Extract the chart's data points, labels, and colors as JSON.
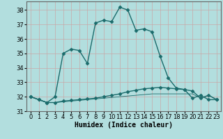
{
  "xlabel": "Humidex (Indice chaleur)",
  "background_color": "#b2dede",
  "grid_color": "#c8e8e8",
  "line_color": "#1a6b6b",
  "x_values": [
    0,
    1,
    2,
    3,
    4,
    5,
    6,
    7,
    8,
    9,
    10,
    11,
    12,
    13,
    14,
    15,
    16,
    17,
    18,
    19,
    20,
    21,
    22,
    23
  ],
  "series1": [
    32.0,
    31.8,
    31.6,
    32.0,
    35.0,
    35.3,
    35.2,
    34.3,
    37.1,
    37.3,
    37.2,
    38.2,
    38.0,
    36.6,
    36.7,
    36.5,
    34.8,
    33.3,
    32.6,
    32.5,
    31.9,
    32.1,
    31.8,
    31.8
  ],
  "series2": [
    32.0,
    31.8,
    31.6,
    31.6,
    31.7,
    31.75,
    31.8,
    31.85,
    31.9,
    32.0,
    32.1,
    32.2,
    32.35,
    32.45,
    32.55,
    32.6,
    32.65,
    32.6,
    32.55,
    32.5,
    32.4,
    31.9,
    32.1,
    31.8
  ],
  "series3": [
    32.0,
    31.8,
    31.6,
    31.6,
    31.65,
    31.7,
    31.75,
    31.8,
    31.85,
    31.9,
    31.95,
    32.0,
    32.05,
    32.1,
    32.15,
    32.2,
    32.2,
    32.2,
    32.2,
    32.2,
    32.2,
    31.9,
    32.1,
    31.8
  ],
  "ylim": [
    31.0,
    38.6
  ],
  "yticks": [
    31,
    32,
    33,
    34,
    35,
    36,
    37,
    38
  ],
  "xlim": [
    -0.5,
    23.5
  ],
  "xticks": [
    0,
    1,
    2,
    3,
    4,
    5,
    6,
    7,
    8,
    9,
    10,
    11,
    12,
    13,
    14,
    15,
    16,
    17,
    18,
    19,
    20,
    21,
    22,
    23
  ],
  "marker": "D",
  "markersize": 2.5,
  "linewidth": 1.0,
  "xlabel_fontsize": 7,
  "tick_fontsize": 6
}
